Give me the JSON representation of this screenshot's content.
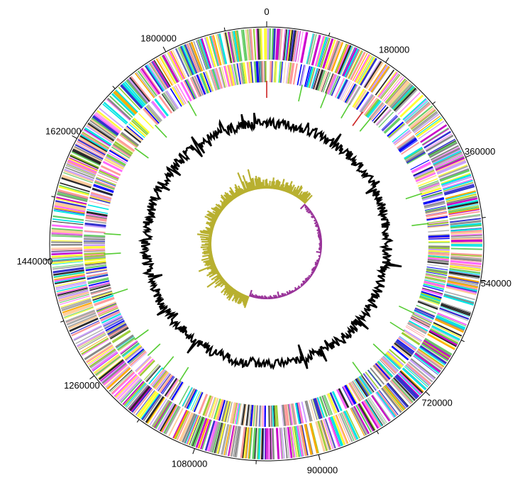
{
  "diagram": {
    "type": "circular-genome-map",
    "genome_length": 1950000,
    "tick_labels": [
      "0",
      "180000",
      "360000",
      "540000",
      "720000",
      "900000",
      "1080000",
      "1260000",
      "1440000",
      "1620000",
      "1800000"
    ],
    "tick_values": [
      0,
      180000,
      360000,
      540000,
      720000,
      900000,
      1080000,
      1260000,
      1440000,
      1620000,
      1800000
    ],
    "minor_tick_values": [
      90000,
      270000,
      450000,
      630000,
      810000,
      990000,
      1170000,
      1350000,
      1530000,
      1710000,
      1890000
    ],
    "tracks": [
      {
        "name": "cds-forward",
        "colors": [
          "#00e5e5",
          "#9acd32",
          "#ff66ff",
          "#ffff33",
          "#c8a0ff",
          "#ff9999",
          "#3333cc",
          "#2a2a2a",
          "#888888",
          "#66cc66",
          "#ffcc99",
          "#aaaaaa",
          "#c800c8",
          "#ffaa00"
        ]
      },
      {
        "name": "cds-reverse",
        "colors": [
          "#00e5e5",
          "#9acd32",
          "#ff66ff",
          "#ffff33",
          "#c8a0ff",
          "#ff9999",
          "#3333cc",
          "#2a2a2a",
          "#888888",
          "#66cc66",
          "#ffcc99",
          "#aaaaaa",
          "#0000ff",
          "#ff9999"
        ]
      },
      {
        "name": "rna-genes",
        "colors": [
          "#55cc33",
          "#cc2222"
        ]
      },
      {
        "name": "gc-content",
        "color": "#000000"
      },
      {
        "name": "gc-skew",
        "colors": {
          "positive": "#b8b030",
          "negative": "#993399"
        }
      }
    ]
  }
}
